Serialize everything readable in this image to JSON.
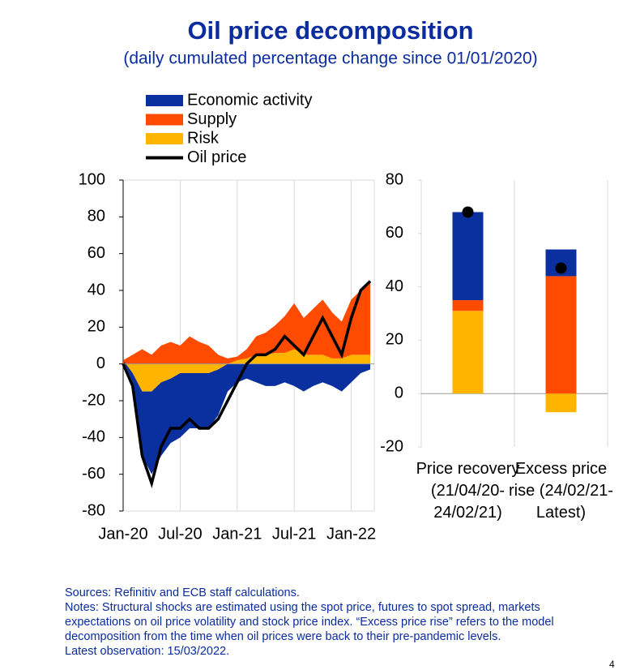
{
  "header": {
    "title": "Oil price decomposition",
    "subtitle": "(daily cumulated percentage change since 01/01/2020)"
  },
  "chart_data": [
    {
      "type": "stacked-area",
      "categories": [
        "Jan-20",
        null,
        null,
        null,
        null,
        null,
        "Jul-20",
        null,
        null,
        null,
        null,
        null,
        "Jan-21",
        null,
        null,
        null,
        null,
        null,
        "Jul-21",
        null,
        null,
        null,
        null,
        null,
        "Jan-22",
        null,
        null
      ],
      "series": [
        {
          "name": "Economic activity",
          "color": "#0a2f9e",
          "values": [
            0,
            -5,
            -35,
            -45,
            -40,
            -35,
            -35,
            -30,
            -30,
            -30,
            -25,
            -15,
            -10,
            -8,
            -10,
            -12,
            -12,
            -10,
            -12,
            -15,
            -12,
            -10,
            -12,
            -15,
            -10,
            -5,
            -3
          ]
        },
        {
          "name": "Supply",
          "color": "#ff4b00",
          "values": [
            2,
            5,
            8,
            5,
            10,
            12,
            10,
            15,
            12,
            10,
            5,
            3,
            2,
            5,
            10,
            12,
            15,
            20,
            25,
            20,
            25,
            30,
            25,
            20,
            30,
            35,
            40
          ]
        },
        {
          "name": "Risk",
          "color": "#ffb400",
          "values": [
            0,
            -5,
            -15,
            -15,
            -10,
            -8,
            -5,
            -5,
            -5,
            -5,
            -3,
            0,
            2,
            3,
            5,
            5,
            6,
            6,
            8,
            5,
            5,
            5,
            3,
            3,
            5,
            5,
            5
          ]
        },
        {
          "name": "Oil price",
          "type": "line",
          "color": "#000000",
          "values": [
            0,
            -12,
            -50,
            -65,
            -45,
            -35,
            -35,
            -30,
            -35,
            -35,
            -30,
            -20,
            -10,
            0,
            5,
            5,
            8,
            15,
            10,
            5,
            15,
            25,
            15,
            5,
            25,
            40,
            45
          ]
        }
      ],
      "ylim": [
        -80,
        100
      ],
      "yticks": [
        -80,
        -60,
        -40,
        -20,
        0,
        20,
        40,
        60,
        80,
        100
      ],
      "grid": "x"
    },
    {
      "type": "stacked-bar",
      "categories": [
        "Price recovery (21/04/20-24/02/21)",
        "Excess price rise (24/02/21-Latest)"
      ],
      "series": [
        {
          "color": "#0a2f9e",
          "values": [
            33,
            10
          ]
        },
        {
          "color": "#ff4b00",
          "values": [
            4,
            44
          ]
        },
        {
          "color": "#ffb400",
          "values": [
            31,
            -7
          ]
        }
      ],
      "dots": {
        "color": "#000000",
        "values": [
          68,
          47
        ]
      },
      "ylim": [
        -20,
        80
      ],
      "yticks": [
        -20,
        0,
        20,
        40,
        60,
        80
      ]
    }
  ],
  "footer": {
    "sources": "Sources: Refinitiv and ECB staff calculations.",
    "notes": "Notes: Structural shocks are estimated using the spot price, futures to spot spread, markets expectations on oil price volatility and stock price index. “Excess price rise” refers to the model decomposition from the time when oil prices were back to their pre-pandemic levels.",
    "latest": "Latest observation: 15/03/2022.",
    "page": "4"
  }
}
